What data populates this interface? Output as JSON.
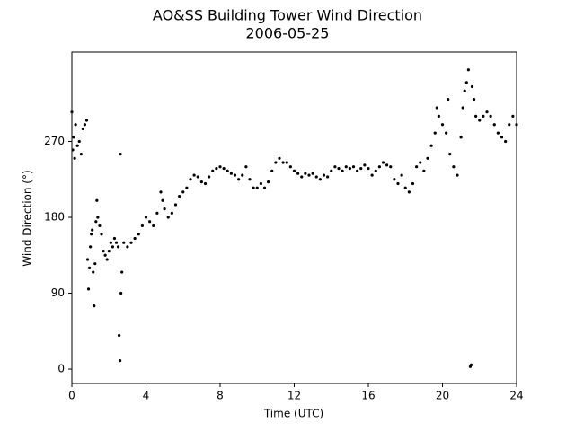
{
  "chart_data": {
    "type": "scatter",
    "title": "AO&SS Building Tower Wind Direction",
    "subtitle": "2006-05-25",
    "x_label": "Time (UTC)",
    "y_label": "Wind Direction (°)",
    "xlim": [
      0,
      24
    ],
    "xticks": [
      0,
      4,
      8,
      12,
      16,
      20,
      24
    ],
    "ylim": [
      -17,
      376
    ],
    "yticks": [
      0,
      90,
      180,
      270
    ],
    "grid": false,
    "series": [
      {
        "color": "#000000",
        "x": [
          0.0,
          0.05,
          0.1,
          0.15,
          0.2,
          0.3,
          0.4,
          0.5,
          0.6,
          0.7,
          0.8,
          0.85,
          0.9,
          0.95,
          1.0,
          1.05,
          1.1,
          1.15,
          1.2,
          1.25,
          1.3,
          1.35,
          1.4,
          1.5,
          1.6,
          1.7,
          1.8,
          1.9,
          2.0,
          2.1,
          2.2,
          2.3,
          2.4,
          2.5,
          2.55,
          2.6,
          2.62,
          2.65,
          2.7,
          2.8,
          3.0,
          3.2,
          3.4,
          3.6,
          3.8,
          4.0,
          4.2,
          4.4,
          4.6,
          4.8,
          4.9,
          5.0,
          5.2,
          5.4,
          5.6,
          5.8,
          6.0,
          6.2,
          6.4,
          6.6,
          6.8,
          7.0,
          7.2,
          7.4,
          7.6,
          7.8,
          8.0,
          8.2,
          8.4,
          8.6,
          8.8,
          9.0,
          9.2,
          9.4,
          9.6,
          9.8,
          10.0,
          10.2,
          10.4,
          10.6,
          10.8,
          11.0,
          11.2,
          11.4,
          11.6,
          11.8,
          12.0,
          12.2,
          12.4,
          12.6,
          12.8,
          13.0,
          13.2,
          13.4,
          13.6,
          13.8,
          14.0,
          14.2,
          14.4,
          14.6,
          14.8,
          15.0,
          15.2,
          15.4,
          15.6,
          15.8,
          16.0,
          16.2,
          16.4,
          16.6,
          16.8,
          17.0,
          17.2,
          17.4,
          17.6,
          17.8,
          18.0,
          18.2,
          18.4,
          18.6,
          18.8,
          19.0,
          19.2,
          19.4,
          19.6,
          19.7,
          19.8,
          20.0,
          20.2,
          20.3,
          20.4,
          20.6,
          20.8,
          21.0,
          21.1,
          21.2,
          21.3,
          21.4,
          21.5,
          21.55,
          21.6,
          21.7,
          21.8,
          22.0,
          22.2,
          22.4,
          22.6,
          22.8,
          23.0,
          23.2,
          23.4,
          23.6,
          23.8,
          24.0
        ],
        "values": [
          305,
          260,
          275,
          250,
          290,
          265,
          270,
          255,
          285,
          290,
          295,
          130,
          95,
          120,
          145,
          160,
          165,
          115,
          75,
          125,
          175,
          200,
          180,
          170,
          160,
          140,
          135,
          130,
          140,
          150,
          145,
          155,
          150,
          145,
          40,
          10,
          255,
          90,
          115,
          150,
          145,
          150,
          155,
          160,
          170,
          180,
          175,
          170,
          185,
          210,
          200,
          190,
          180,
          185,
          195,
          205,
          210,
          215,
          225,
          230,
          228,
          222,
          220,
          228,
          235,
          238,
          240,
          238,
          235,
          232,
          230,
          225,
          230,
          240,
          225,
          215,
          215,
          220,
          215,
          222,
          235,
          245,
          250,
          245,
          245,
          240,
          235,
          232,
          228,
          232,
          230,
          232,
          228,
          225,
          230,
          228,
          235,
          240,
          238,
          235,
          240,
          238,
          240,
          235,
          238,
          242,
          238,
          230,
          235,
          240,
          245,
          242,
          240,
          225,
          220,
          230,
          215,
          210,
          220,
          240,
          245,
          235,
          250,
          265,
          280,
          310,
          300,
          290,
          280,
          320,
          255,
          240,
          230,
          275,
          310,
          330,
          340,
          355,
          3,
          5,
          335,
          320,
          300,
          295,
          300,
          305,
          300,
          290,
          280,
          275,
          270,
          290,
          300,
          290
        ]
      }
    ]
  }
}
